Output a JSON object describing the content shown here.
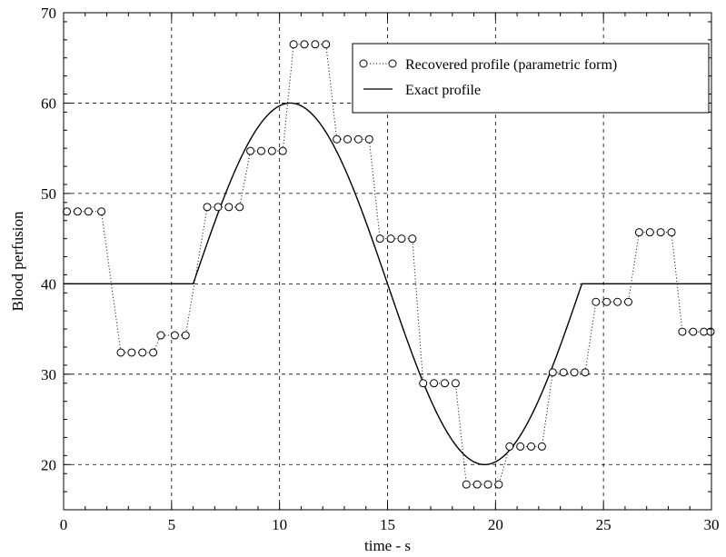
{
  "chart_data": {
    "type": "line",
    "title": "",
    "xlabel": "time - s",
    "ylabel": "Blood perfusion",
    "xlim": [
      0,
      30
    ],
    "ylim": [
      15,
      70
    ],
    "xticks": [
      0,
      5,
      10,
      15,
      20,
      25,
      30
    ],
    "yticks": [
      20,
      30,
      40,
      50,
      60,
      70
    ],
    "xtick_labels": [
      "0",
      "5",
      "10",
      "15",
      "20",
      "25",
      "30"
    ],
    "ytick_labels": [
      "20",
      "30",
      "40",
      "50",
      "60",
      "70"
    ],
    "grid": true,
    "legend_position": "top-right",
    "series": [
      {
        "name": "Recovered profile (parametric form)",
        "style": "dotted line with open circle markers",
        "x": [
          0.15,
          0.65,
          1.15,
          1.75,
          2.65,
          3.15,
          3.65,
          4.15,
          4.5,
          5.15,
          5.65,
          6.65,
          7.15,
          7.65,
          8.15,
          8.65,
          9.15,
          9.65,
          10.15,
          10.65,
          11.15,
          11.65,
          12.15,
          12.65,
          13.15,
          13.65,
          14.15,
          14.65,
          15.15,
          15.65,
          16.15,
          16.65,
          17.15,
          17.65,
          18.15,
          18.65,
          19.15,
          19.65,
          20.15,
          20.65,
          21.15,
          21.65,
          22.15,
          22.65,
          23.15,
          23.65,
          24.15,
          24.65,
          25.15,
          25.65,
          26.15,
          26.65,
          27.15,
          27.65,
          28.15,
          28.65,
          29.15,
          29.65,
          30.15
        ],
        "y": [
          48,
          48,
          48,
          48,
          32.4,
          32.4,
          32.4,
          32.4,
          34.3,
          34.3,
          34.3,
          48.5,
          48.5,
          48.5,
          48.5,
          54.7,
          54.7,
          54.7,
          54.7,
          66.5,
          66.5,
          66.5,
          66.5,
          56,
          56,
          56,
          56,
          45,
          45,
          45,
          45,
          29,
          29,
          29,
          29,
          17.8,
          17.8,
          17.8,
          17.8,
          22,
          22,
          22,
          22,
          30.2,
          30.2,
          30.2,
          30.2,
          38,
          38,
          38,
          38,
          45.7,
          45.7,
          45.7,
          45.7,
          34.7,
          34.7,
          34.7,
          34.7
        ]
      },
      {
        "name": "Exact profile",
        "style": "solid line",
        "piecewise": "y = 40 for t<6 and t>24; y = 40 + 20*sin(pi*(t-6)/9) for 6<=t<=24",
        "x": [
          0,
          6,
          24,
          30
        ],
        "y": [
          40,
          40,
          40,
          40
        ]
      }
    ]
  }
}
